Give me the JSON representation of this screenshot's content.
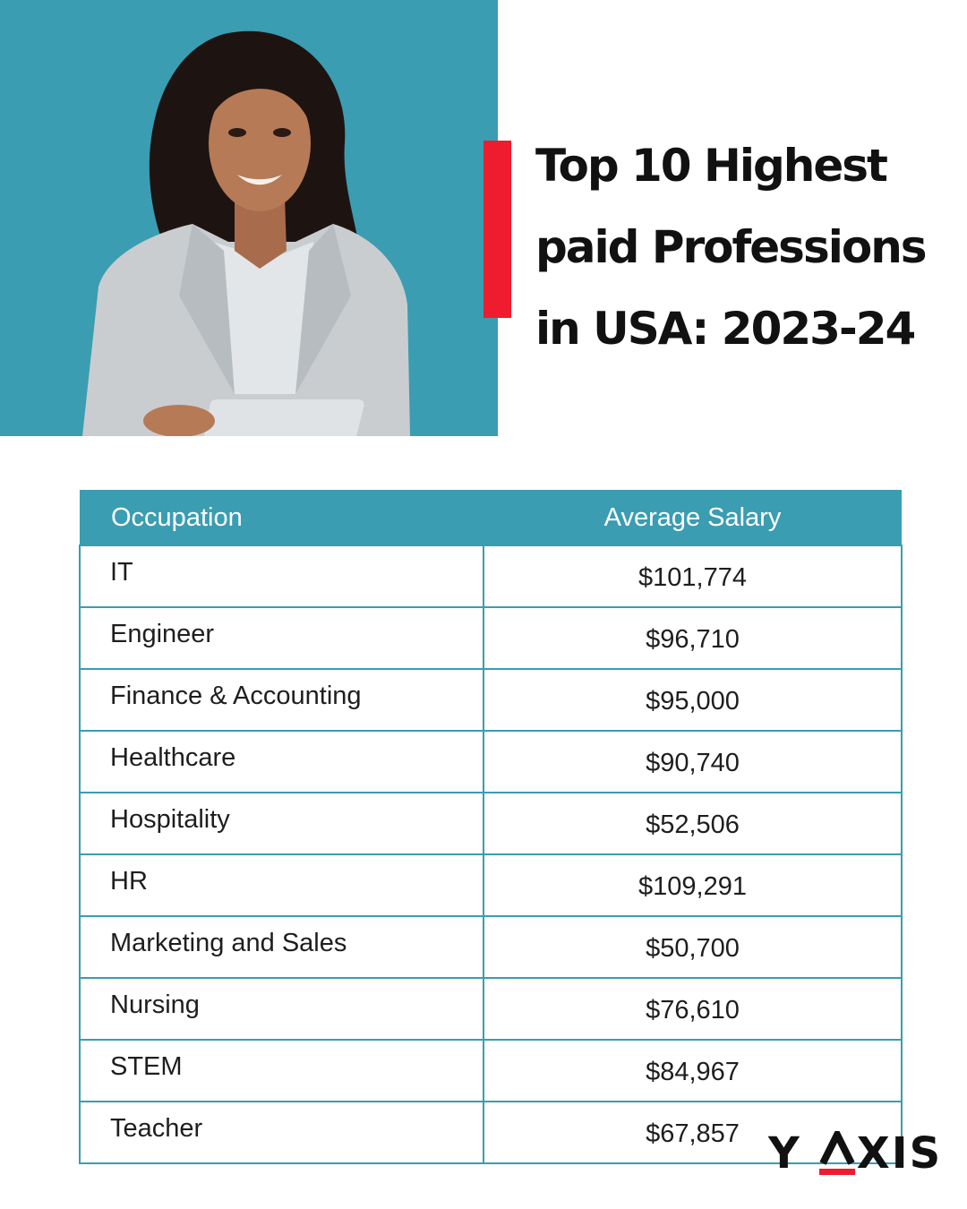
{
  "title": "Top 10 Highest\npaid Professions\nin USA: 2023-24",
  "table": {
    "headers": [
      "Occupation",
      "Average Salary"
    ],
    "rows": [
      {
        "occupation": "IT",
        "salary": "$101,774"
      },
      {
        "occupation": "Engineer",
        "salary": "$96,710"
      },
      {
        "occupation": "Finance & Accounting",
        "salary": "$95,000"
      },
      {
        "occupation": "Healthcare",
        "salary": "$90,740"
      },
      {
        "occupation": "Hospitality",
        "salary": "$52,506"
      },
      {
        "occupation": "HR",
        "salary": "$109,291"
      },
      {
        "occupation": "Marketing and Sales",
        "salary": "$50,700"
      },
      {
        "occupation": "Nursing",
        "salary": "$76,610"
      },
      {
        "occupation": "STEM",
        "salary": "$84,967"
      },
      {
        "occupation": "Teacher",
        "salary": "$67,857"
      }
    ]
  },
  "logo": {
    "text": "Y AXIS",
    "part1": "Y",
    "part2": "XIS"
  },
  "colors": {
    "teal": "#3a9db2",
    "red": "#ee1c2e",
    "text": "#111111"
  }
}
